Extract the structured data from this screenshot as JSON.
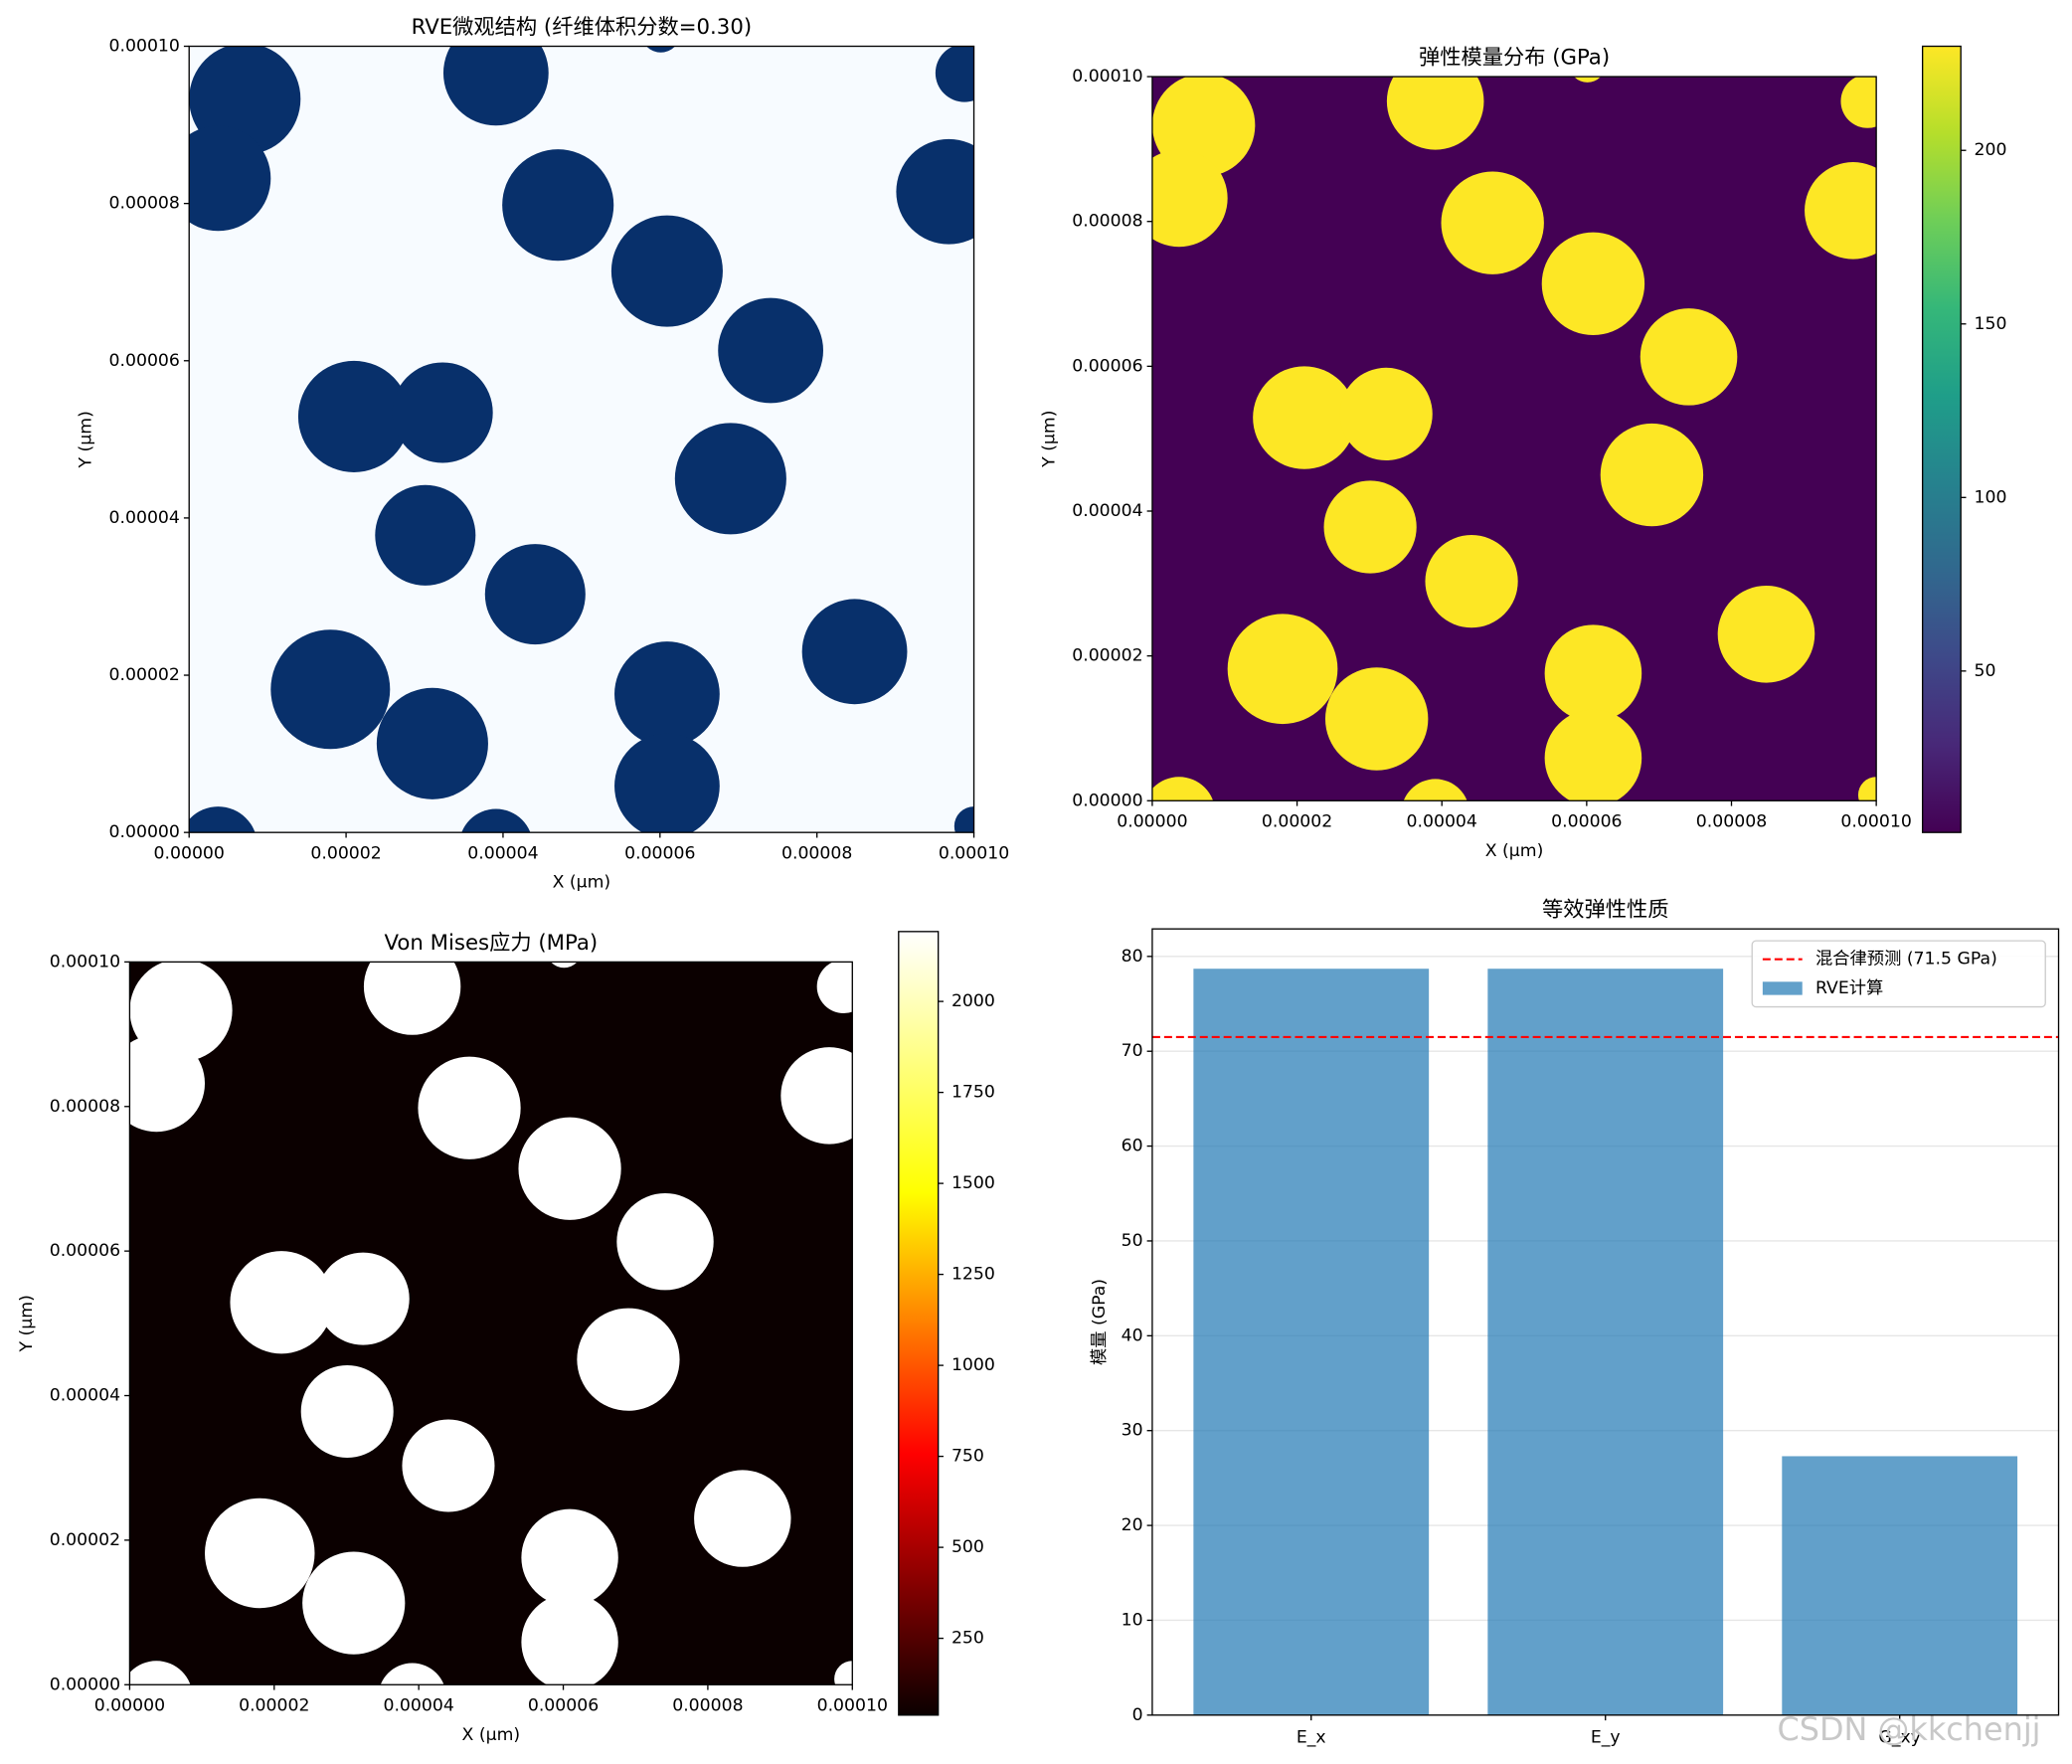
{
  "chart_data": [
    {
      "type": "image",
      "title": "RVE微观结构 (纤维体积分数=0.30)",
      "xlabel": "X (μm)",
      "ylabel": "Y (μm)",
      "xlim": [
        0,
        0.0001
      ],
      "ylim": [
        0,
        0.0001
      ],
      "xticks": [
        {
          "value": 0,
          "label": "0.00000"
        },
        {
          "value": 2e-05,
          "label": "0.00002"
        },
        {
          "value": 4e-05,
          "label": "0.00004"
        },
        {
          "value": 6e-05,
          "label": "0.00006"
        },
        {
          "value": 8e-05,
          "label": "0.00008"
        },
        {
          "value": 0.0001,
          "label": "0.00010"
        }
      ],
      "yticks": [
        {
          "value": 0,
          "label": "0.00000"
        },
        {
          "value": 2e-05,
          "label": "0.00002"
        },
        {
          "value": 4e-05,
          "label": "0.00004"
        },
        {
          "value": 6e-05,
          "label": "0.00006"
        },
        {
          "value": 8e-05,
          "label": "0.00008"
        },
        {
          "value": 0.0001,
          "label": "0.00010"
        }
      ],
      "matrix_color": "#f7fbff",
      "fiber_color": "#08306b",
      "fibers": [
        {
          "x": 7.1e-06,
          "y": 9.33e-05,
          "r": 7.1e-06
        },
        {
          "x": 3.7e-06,
          "y": 8.32e-05,
          "r": 6.7e-06
        },
        {
          "x": 3.91e-05,
          "y": 9.66e-05,
          "r": 6.7e-06
        },
        {
          "x": 4.7e-05,
          "y": 7.98e-05,
          "r": 7.1e-06
        },
        {
          "x": 6.09e-05,
          "y": 7.14e-05,
          "r": 7.1e-06
        },
        {
          "x": 7.41e-05,
          "y": 6.13e-05,
          "r": 6.7e-06
        },
        {
          "x": 2.1e-05,
          "y": 5.29e-05,
          "r": 7.1e-06
        },
        {
          "x": 3.23e-05,
          "y": 5.34e-05,
          "r": 6.4e-06
        },
        {
          "x": 6.9e-05,
          "y": 4.5e-05,
          "r": 7.1e-06
        },
        {
          "x": 3.01e-05,
          "y": 3.78e-05,
          "r": 6.4e-06
        },
        {
          "x": 4.41e-05,
          "y": 3.03e-05,
          "r": 6.4e-06
        },
        {
          "x": 8.48e-05,
          "y": 2.3e-05,
          "r": 6.7e-06
        },
        {
          "x": 1.8e-05,
          "y": 1.82e-05,
          "r": 7.6e-06
        },
        {
          "x": 3.1e-05,
          "y": 1.13e-05,
          "r": 7.1e-06
        },
        {
          "x": 6.09e-05,
          "y": 1.76e-05,
          "r": 6.7e-06
        },
        {
          "x": 6.09e-05,
          "y": 5.9e-06,
          "r": 6.7e-06
        },
        {
          "x": 9.68e-05,
          "y": 8.15e-05,
          "r": 6.7e-06
        },
        {
          "x": 9.88e-05,
          "y": 9.66e-05,
          "r": 3.7e-06
        },
        {
          "x": 3.7e-06,
          "y": -1.7e-06,
          "r": 5e-06
        },
        {
          "x": 3.91e-05,
          "y": -1.7e-06,
          "r": 4.7e-06
        },
        {
          "x": 6.01e-05,
          "y": 0.0001017,
          "r": 2.5e-06
        },
        {
          "x": 0.0001,
          "y": 8e-07,
          "r": 2.5e-06
        }
      ]
    },
    {
      "type": "image",
      "title": "弹性模量分布 (GPa)",
      "xlabel": "X (μm)",
      "ylabel": "Y (μm)",
      "xlim": [
        0,
        0.0001
      ],
      "ylim": [
        0,
        0.0001
      ],
      "xticks": [
        {
          "value": 0,
          "label": "0.00000"
        },
        {
          "value": 2e-05,
          "label": "0.00002"
        },
        {
          "value": 4e-05,
          "label": "0.00004"
        },
        {
          "value": 6e-05,
          "label": "0.00006"
        },
        {
          "value": 8e-05,
          "label": "0.00008"
        },
        {
          "value": 0.0001,
          "label": "0.00010"
        }
      ],
      "yticks": [
        {
          "value": 0,
          "label": "0.00000"
        },
        {
          "value": 2e-05,
          "label": "0.00002"
        },
        {
          "value": 4e-05,
          "label": "0.00004"
        },
        {
          "value": 6e-05,
          "label": "0.00006"
        },
        {
          "value": 8e-05,
          "label": "0.00008"
        },
        {
          "value": 0.0001,
          "label": "0.00010"
        }
      ],
      "matrix_value": 3.5,
      "fiber_value": 230,
      "clim": [
        3.5,
        230
      ],
      "colorbar_ticks": [
        50,
        100,
        150,
        200
      ],
      "colormap": [
        "#440154",
        "#482878",
        "#3e4989",
        "#31688e",
        "#26828e",
        "#1f9e89",
        "#35b779",
        "#6ece58",
        "#b5de2b",
        "#fde725"
      ]
    },
    {
      "type": "image",
      "title": "Von Mises应力 (MPa)",
      "xlabel": "X (μm)",
      "ylabel": "Y (μm)",
      "xlim": [
        0,
        0.0001
      ],
      "ylim": [
        0,
        0.0001
      ],
      "xticks": [
        {
          "value": 0,
          "label": "0.00000"
        },
        {
          "value": 2e-05,
          "label": "0.00002"
        },
        {
          "value": 4e-05,
          "label": "0.00004"
        },
        {
          "value": 6e-05,
          "label": "0.00006"
        },
        {
          "value": 8e-05,
          "label": "0.00008"
        },
        {
          "value": 0.0001,
          "label": "0.00010"
        }
      ],
      "yticks": [
        {
          "value": 0,
          "label": "0.00000"
        },
        {
          "value": 2e-05,
          "label": "0.00002"
        },
        {
          "value": 4e-05,
          "label": "0.00004"
        },
        {
          "value": 6e-05,
          "label": "0.00006"
        },
        {
          "value": 8e-05,
          "label": "0.00008"
        },
        {
          "value": 0.0001,
          "label": "0.00010"
        }
      ],
      "matrix_value": 39,
      "fiber_value": 2192,
      "clim": [
        39,
        2192
      ],
      "colorbar_ticks": [
        250,
        500,
        750,
        1000,
        1250,
        1500,
        1750,
        2000
      ],
      "colormap": [
        "#0b0000",
        "#ff0000",
        "#ffff00",
        "#ffffff"
      ]
    },
    {
      "type": "bar",
      "title": "等效弹性性质",
      "ylabel": "模量 (GPa)",
      "categories": [
        "E_x",
        "E_y",
        "G_xy"
      ],
      "series": [
        {
          "name": "RVE计算",
          "color": "#1f77b4",
          "values": [
            78.7,
            78.7,
            27.3
          ]
        }
      ],
      "opacity": 0.7,
      "hline": {
        "name": "混合律预测 (71.5 GPa)",
        "value": 71.5,
        "color": "#ff0000"
      },
      "ylim": [
        0,
        82.9
      ],
      "yticks": [
        0,
        10,
        20,
        30,
        40,
        50,
        60,
        70,
        80
      ],
      "grid": true,
      "legend": "upper right"
    }
  ],
  "watermark": "CSDN @kkchenjj"
}
